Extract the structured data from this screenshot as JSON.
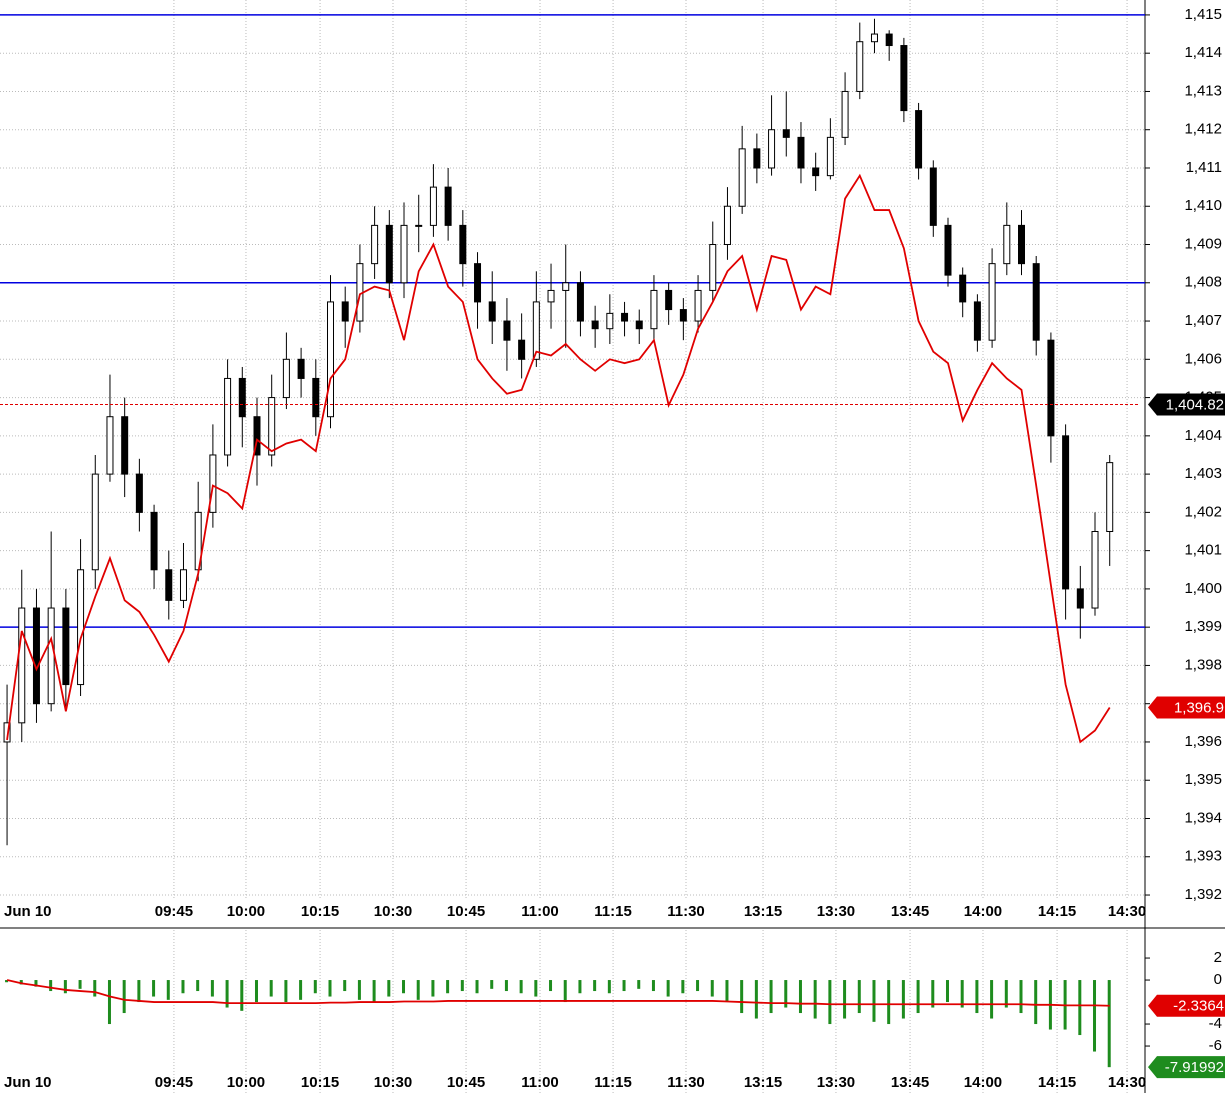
{
  "chart_data": [
    {
      "type": "candlestick",
      "date_label": "Jun 10",
      "xlim": [
        -0.48,
        77.4
      ],
      "xticks": [
        {
          "value": 11.35,
          "label": "09:45"
        },
        {
          "value": 16.25,
          "label": "10:00"
        },
        {
          "value": 21.29,
          "label": "10:15"
        },
        {
          "value": 26.25,
          "label": "10:30"
        },
        {
          "value": 31.22,
          "label": "10:45"
        },
        {
          "value": 36.25,
          "label": "11:00"
        },
        {
          "value": 41.22,
          "label": "11:15"
        },
        {
          "value": 46.18,
          "label": "11:30"
        },
        {
          "value": 51.42,
          "label": "13:15"
        },
        {
          "value": 56.38,
          "label": "13:30"
        },
        {
          "value": 61.42,
          "label": "13:45"
        },
        {
          "value": 66.38,
          "label": "14:00"
        },
        {
          "value": 71.42,
          "label": "14:15"
        },
        {
          "value": 76.18,
          "label": "14:30"
        }
      ],
      "ylim": [
        1391.87,
        1415.39
      ],
      "yticks": [
        {
          "value": 1392,
          "label": "1,392"
        },
        {
          "value": 1393,
          "label": "1,393"
        },
        {
          "value": 1394,
          "label": "1,394"
        },
        {
          "value": 1395,
          "label": "1,395"
        },
        {
          "value": 1396,
          "label": "1,396"
        },
        {
          "value": 1397,
          "label": "1,397"
        },
        {
          "value": 1398,
          "label": "1,398"
        },
        {
          "value": 1399,
          "label": "1,399"
        },
        {
          "value": 1400,
          "label": "1,400"
        },
        {
          "value": 1401,
          "label": "1,401"
        },
        {
          "value": 1402,
          "label": "1,402"
        },
        {
          "value": 1403,
          "label": "1,403"
        },
        {
          "value": 1404,
          "label": "1,404"
        },
        {
          "value": 1405,
          "label": "1,405"
        },
        {
          "value": 1406,
          "label": "1,406"
        },
        {
          "value": 1407,
          "label": "1,407"
        },
        {
          "value": 1408,
          "label": "1,408"
        },
        {
          "value": 1409,
          "label": "1,409"
        },
        {
          "value": 1410,
          "label": "1,410"
        },
        {
          "value": 1411,
          "label": "1,411"
        },
        {
          "value": 1412,
          "label": "1,412"
        },
        {
          "value": 1413,
          "label": "1,413"
        },
        {
          "value": 1414,
          "label": "1,414"
        },
        {
          "value": 1415,
          "label": "1,415"
        }
      ],
      "grid": true,
      "open": [
        1396,
        1396.5,
        1399.5,
        1397,
        1399.5,
        1397.5,
        1400.5,
        1403,
        1404.5,
        1403,
        1402,
        1400.5,
        1399.7,
        1400.5,
        1402,
        1403.5,
        1405.5,
        1404.5,
        1403.5,
        1405,
        1406,
        1405.5,
        1404.5,
        1407.5,
        1407,
        1408.5,
        1409.5,
        1408,
        1409.5,
        1409.5,
        1410.5,
        1409.5,
        1408.5,
        1407.5,
        1407,
        1406.5,
        1406,
        1407.5,
        1407.8,
        1408,
        1407,
        1406.8,
        1407.2,
        1407,
        1406.8,
        1407.8,
        1407.3,
        1407,
        1407.8,
        1409,
        1410,
        1411.5,
        1411,
        1412,
        1411.8,
        1411,
        1410.8,
        1411.8,
        1413,
        1414.3,
        1414.5,
        1414.2,
        1412.5,
        1411,
        1409.5,
        1408.2,
        1407.5,
        1406.5,
        1408.5,
        1409.5,
        1408.5,
        1406.5,
        1404,
        1400,
        1399.5,
        1401.5
      ],
      "high": [
        1397.5,
        1400.5,
        1400,
        1401.5,
        1400,
        1401.3,
        1403.5,
        1405.6,
        1405,
        1403.4,
        1402.2,
        1401,
        1401.2,
        1402.8,
        1404.3,
        1406,
        1405.8,
        1405,
        1405.6,
        1406.7,
        1406.3,
        1406,
        1408.2,
        1407.9,
        1409,
        1410,
        1409.9,
        1410.1,
        1410.3,
        1411.1,
        1411,
        1409.9,
        1408.8,
        1408.3,
        1407.6,
        1407.2,
        1408.3,
        1408.5,
        1409,
        1408.3,
        1407.4,
        1407.7,
        1407.5,
        1407.3,
        1408.2,
        1408,
        1407.6,
        1408.2,
        1409.6,
        1410.5,
        1412.1,
        1411.9,
        1412.9,
        1413,
        1412.2,
        1411.4,
        1412.3,
        1413.5,
        1414.8,
        1414.9,
        1414.6,
        1414.4,
        1412.7,
        1411.2,
        1409.7,
        1408.4,
        1407.7,
        1408.9,
        1410.1,
        1409.9,
        1408.7,
        1406.7,
        1404.3,
        1400.6,
        1402,
        1403.5
      ],
      "low": [
        1393.3,
        1396,
        1396.5,
        1396.8,
        1396.9,
        1397.2,
        1400,
        1402.8,
        1402.4,
        1401.5,
        1400,
        1399.2,
        1399.5,
        1400.2,
        1401.6,
        1403.2,
        1403.7,
        1402.7,
        1403.2,
        1404.7,
        1405,
        1404,
        1404.2,
        1406.3,
        1406.7,
        1408.1,
        1407.6,
        1407.6,
        1408.8,
        1409.2,
        1409.1,
        1407.9,
        1406.8,
        1406.4,
        1405.7,
        1405.5,
        1405.8,
        1406.8,
        1406.3,
        1406.6,
        1406.3,
        1406.4,
        1406.6,
        1406.4,
        1406.5,
        1406.9,
        1406.5,
        1406.7,
        1407.5,
        1408.6,
        1409.8,
        1410.6,
        1410.8,
        1411.3,
        1410.6,
        1410.4,
        1410.7,
        1411.6,
        1412.8,
        1414,
        1413.8,
        1412.2,
        1410.7,
        1409.2,
        1407.9,
        1407.1,
        1406.2,
        1406.3,
        1408.2,
        1408.2,
        1406.1,
        1403.3,
        1399.2,
        1398.7,
        1399.3,
        1400.6
      ],
      "close": [
        1396.5,
        1399.5,
        1397,
        1399.5,
        1397.5,
        1400.5,
        1403,
        1404.5,
        1403,
        1402,
        1400.5,
        1399.7,
        1400.5,
        1402,
        1403.5,
        1405.5,
        1404.5,
        1403.5,
        1405,
        1406,
        1405.5,
        1404.5,
        1407.5,
        1407,
        1408.5,
        1409.5,
        1408,
        1409.5,
        1409.5,
        1410.5,
        1409.5,
        1408.5,
        1407.5,
        1407,
        1406.5,
        1406,
        1407.5,
        1407.8,
        1408,
        1407,
        1406.8,
        1407.2,
        1407,
        1406.8,
        1407.8,
        1407.3,
        1407,
        1407.8,
        1409,
        1410,
        1411.5,
        1411,
        1412,
        1411.8,
        1411,
        1410.8,
        1411.8,
        1413,
        1414.3,
        1414.5,
        1414.2,
        1412.5,
        1411,
        1409.5,
        1408.2,
        1407.5,
        1406.5,
        1408.5,
        1409.5,
        1408.5,
        1406.5,
        1404,
        1400,
        1399.5,
        1401.5,
        1403.3
      ],
      "overlay": {
        "color": "#e00000",
        "values": [
          1396.05,
          1398.9,
          1397.9,
          1398.7,
          1396.8,
          1398.7,
          1399.8,
          1400.8,
          1399.7,
          1399.4,
          1398.8,
          1398.1,
          1398.9,
          1400.4,
          1402.7,
          1402.5,
          1402.1,
          1403.9,
          1403.6,
          1403.8,
          1403.9,
          1403.6,
          1405.5,
          1406.0,
          1407.7,
          1407.9,
          1407.8,
          1406.5,
          1408.3,
          1409.0,
          1407.9,
          1407.5,
          1406.0,
          1405.5,
          1405.1,
          1405.2,
          1406.2,
          1406.1,
          1406.4,
          1406.0,
          1405.7,
          1406.0,
          1405.9,
          1406.0,
          1406.5,
          1404.8,
          1405.6,
          1406.8,
          1407.5,
          1408.3,
          1408.7,
          1407.3,
          1408.7,
          1408.6,
          1407.3,
          1407.9,
          1407.7,
          1410.2,
          1410.8,
          1409.9,
          1409.9,
          1408.9,
          1407.0,
          1406.2,
          1405.9,
          1404.4,
          1405.2,
          1405.9,
          1405.5,
          1405.2,
          1402.7,
          1400.1,
          1397.5,
          1396.0,
          1396.3,
          1396.9
        ]
      },
      "hlines": {
        "color": "#0000e0",
        "values": [
          1415,
          1408,
          1399
        ]
      },
      "markers": [
        {
          "value": 1404.82,
          "label": "1,404.82",
          "color": "#000000"
        },
        {
          "value": 1396.9,
          "label": "1,396.9",
          "color": "#e00000"
        }
      ]
    },
    {
      "type": "bar",
      "date_label": "Jun 10",
      "xlim": [
        -0.48,
        77.4
      ],
      "xticks": [
        {
          "value": 11.35,
          "label": "09:45"
        },
        {
          "value": 16.25,
          "label": "10:00"
        },
        {
          "value": 21.29,
          "label": "10:15"
        },
        {
          "value": 26.25,
          "label": "10:30"
        },
        {
          "value": 31.22,
          "label": "10:45"
        },
        {
          "value": 36.25,
          "label": "11:00"
        },
        {
          "value": 41.22,
          "label": "11:15"
        },
        {
          "value": 46.18,
          "label": "11:30"
        },
        {
          "value": 51.42,
          "label": "13:15"
        },
        {
          "value": 56.38,
          "label": "13:30"
        },
        {
          "value": 61.42,
          "label": "13:45"
        },
        {
          "value": 66.38,
          "label": "14:00"
        },
        {
          "value": 71.42,
          "label": "14:15"
        },
        {
          "value": 76.18,
          "label": "14:30"
        }
      ],
      "ylim": [
        -10.27,
        4.55
      ],
      "yticks": [
        2,
        0,
        -4,
        -6
      ],
      "color": "#1e8c1e",
      "values": [
        -0.2,
        -0.4,
        -0.6,
        -1.0,
        -1.2,
        -0.8,
        -1.5,
        -4.0,
        -3.0,
        -2.0,
        -1.5,
        -1.8,
        -1.2,
        -1.0,
        -1.5,
        -2.5,
        -2.8,
        -2.0,
        -1.5,
        -2.0,
        -1.8,
        -1.2,
        -1.5,
        -1.0,
        -1.8,
        -2.0,
        -1.5,
        -1.2,
        -1.8,
        -1.5,
        -1.2,
        -1.0,
        -1.2,
        -0.8,
        -1.0,
        -1.2,
        -1.5,
        -1.0,
        -2.0,
        -1.2,
        -1.0,
        -1.2,
        -1.0,
        -0.8,
        -1.0,
        -1.5,
        -1.2,
        -1.0,
        -1.5,
        -2.0,
        -3.0,
        -3.5,
        -3.0,
        -2.5,
        -3.0,
        -3.5,
        -4.0,
        -3.5,
        -3.0,
        -3.8,
        -4.0,
        -3.5,
        -3.0,
        -2.5,
        -2.0,
        -2.5,
        -3.0,
        -3.5,
        -2.5,
        -3.0,
        -4.0,
        -4.5,
        -4.5,
        -5.0,
        -6.5,
        -7.91992
      ],
      "average": {
        "color": "#e00000",
        "values": [
          0,
          -0.3,
          -0.5,
          -0.7,
          -0.9,
          -1.0,
          -1.1,
          -1.5,
          -1.8,
          -1.9,
          -2.0,
          -2.0,
          -2.0,
          -2.0,
          -2.0,
          -2.1,
          -2.1,
          -2.1,
          -2.1,
          -2.1,
          -2.1,
          -2.1,
          -2.05,
          -2.05,
          -2.0,
          -2.0,
          -2.0,
          -1.95,
          -1.95,
          -1.95,
          -1.9,
          -1.9,
          -1.9,
          -1.9,
          -1.9,
          -1.9,
          -1.9,
          -1.9,
          -1.9,
          -1.9,
          -1.9,
          -1.9,
          -1.9,
          -1.9,
          -1.9,
          -1.9,
          -1.9,
          -1.9,
          -1.9,
          -1.95,
          -2.0,
          -2.05,
          -2.1,
          -2.1,
          -2.15,
          -2.15,
          -2.2,
          -2.2,
          -2.2,
          -2.2,
          -2.2,
          -2.2,
          -2.2,
          -2.2,
          -2.2,
          -2.2,
          -2.2,
          -2.2,
          -2.2,
          -2.2,
          -2.25,
          -2.25,
          -2.3,
          -2.3,
          -2.3,
          -2.3364
        ]
      },
      "markers": [
        {
          "value": -2.3364,
          "color": "#e00000"
        },
        {
          "value": -7.91992,
          "color": "#1e8c1e"
        }
      ]
    }
  ]
}
